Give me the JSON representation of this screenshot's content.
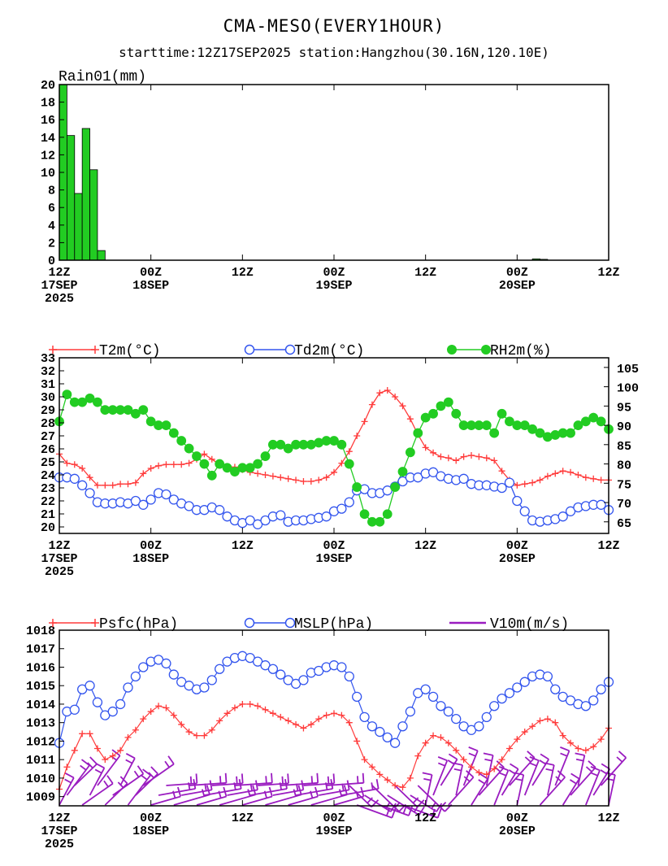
{
  "header": {
    "title": "CMA-MESO(EVERY1HOUR)",
    "subtitle": "starttime:12Z17SEP2025   station:Hangzhou(30.16N,120.10E)"
  },
  "colors": {
    "t2m": "#ff3b3b",
    "td2m": "#3355ee",
    "rh2m": "#22cc22",
    "rain_fill": "#22cc22",
    "psfc": "#ff3b3b",
    "mslp": "#3355ee",
    "wind": "#9a1cc0"
  },
  "x_axis": {
    "ticks": [
      {
        "hour": 0,
        "lines": [
          "12Z",
          "17SEP",
          "2025"
        ]
      },
      {
        "hour": 12,
        "lines": [
          "00Z",
          "18SEP"
        ]
      },
      {
        "hour": 24,
        "lines": [
          "12Z"
        ]
      },
      {
        "hour": 36,
        "lines": [
          "00Z",
          "19SEP"
        ]
      },
      {
        "hour": 48,
        "lines": [
          "12Z"
        ]
      },
      {
        "hour": 60,
        "lines": [
          "00Z",
          "20SEP"
        ]
      },
      {
        "hour": 72,
        "lines": [
          "12Z"
        ]
      }
    ]
  },
  "chart_data": [
    {
      "type": "bar",
      "title": "Rain01(mm)",
      "ylim": [
        0,
        20
      ],
      "yticks": [
        0,
        2,
        4,
        6,
        8,
        10,
        12,
        14,
        16,
        18,
        20
      ],
      "hours": [
        0.5,
        1.5,
        2.5,
        3.5,
        4.5,
        5.5,
        62.5,
        63.5
      ],
      "values": [
        20,
        14.2,
        7.6,
        15,
        10.3,
        1.1,
        0.15,
        0.1
      ]
    },
    {
      "type": "line",
      "ylim": [
        19.5,
        33
      ],
      "yticks": [
        20,
        21,
        22,
        23,
        24,
        25,
        26,
        27,
        28,
        29,
        30,
        31,
        32,
        33
      ],
      "y2lim": [
        62,
        107.5
      ],
      "y2ticks": [
        65,
        70,
        75,
        80,
        85,
        90,
        95,
        100,
        105
      ],
      "series": [
        {
          "name": "T2m(°C)",
          "axis": "left",
          "values": [
            25.6,
            24.9,
            24.8,
            24.5,
            23.8,
            23.2,
            23.2,
            23.2,
            23.3,
            23.3,
            23.4,
            24.1,
            24.5,
            24.7,
            24.8,
            24.8,
            24.8,
            24.9,
            25.2,
            25.6,
            25.2,
            24.8,
            24.6,
            24.6,
            24.4,
            24.2,
            24.1,
            24.0,
            23.9,
            23.8,
            23.7,
            23.6,
            23.5,
            23.5,
            23.6,
            23.8,
            24.2,
            24.9,
            25.8,
            27.0,
            28.1,
            29.4,
            30.3,
            30.5,
            30.0,
            29.3,
            28.3,
            27.1,
            26.1,
            25.7,
            25.4,
            25.3,
            25.1,
            25.4,
            25.5,
            25.4,
            25.3,
            25.1,
            24.3,
            23.6,
            23.2,
            23.3,
            23.4,
            23.6,
            23.9,
            24.1,
            24.3,
            24.2,
            24.0,
            23.8,
            23.7,
            23.6,
            23.6
          ]
        },
        {
          "name": "Td2m(°C)",
          "axis": "left",
          "values": [
            23.8,
            23.8,
            23.7,
            23.2,
            22.6,
            21.9,
            21.8,
            21.8,
            21.9,
            21.8,
            22.0,
            21.7,
            22.1,
            22.6,
            22.5,
            22.1,
            21.8,
            21.6,
            21.3,
            21.3,
            21.5,
            21.3,
            20.8,
            20.5,
            20.3,
            20.5,
            20.2,
            20.5,
            20.8,
            20.9,
            20.4,
            20.5,
            20.5,
            20.6,
            20.7,
            20.8,
            21.2,
            21.4,
            21.9,
            22.8,
            22.9,
            22.6,
            22.6,
            22.8,
            23.1,
            23.5,
            23.8,
            23.8,
            24.1,
            24.2,
            23.9,
            23.7,
            23.6,
            23.7,
            23.3,
            23.2,
            23.2,
            23.1,
            23.0,
            23.4,
            22.0,
            21.2,
            20.5,
            20.4,
            20.5,
            20.6,
            20.8,
            21.2,
            21.5,
            21.6,
            21.7,
            21.7,
            21.3
          ]
        },
        {
          "name": "RH2m(%)",
          "axis": "right",
          "values": [
            91,
            98,
            96,
            96,
            97,
            96,
            94,
            94,
            94,
            94,
            93,
            94,
            91,
            90,
            90,
            88,
            86,
            84,
            82,
            80,
            77,
            80,
            79,
            78,
            79,
            79,
            80,
            82,
            85,
            85,
            84,
            85,
            85,
            85,
            85.5,
            86,
            86,
            85,
            80,
            74,
            67,
            65,
            65,
            67,
            74,
            78,
            83,
            88,
            92,
            93,
            95,
            96,
            93,
            90,
            90,
            90,
            90,
            88,
            93,
            91,
            90,
            90,
            89,
            88,
            87,
            87.5,
            88,
            88,
            90,
            91,
            92,
            91,
            89
          ]
        }
      ]
    },
    {
      "type": "line",
      "ylim": [
        1008.5,
        1018
      ],
      "yticks": [
        1009,
        1010,
        1011,
        1012,
        1013,
        1014,
        1015,
        1016,
        1017,
        1018
      ],
      "series": [
        {
          "name": "Psfc(hPa)",
          "axis": "left",
          "values": [
            1009.4,
            1010.6,
            1011.5,
            1012.4,
            1012.4,
            1011.6,
            1011.0,
            1011.2,
            1011.5,
            1012.2,
            1012.6,
            1013.2,
            1013.6,
            1013.9,
            1013.8,
            1013.4,
            1012.9,
            1012.5,
            1012.3,
            1012.3,
            1012.6,
            1013.1,
            1013.5,
            1013.8,
            1014.0,
            1014.0,
            1013.9,
            1013.7,
            1013.5,
            1013.3,
            1013.1,
            1012.9,
            1012.7,
            1012.9,
            1013.2,
            1013.4,
            1013.5,
            1013.4,
            1013.0,
            1012.0,
            1011.0,
            1010.6,
            1010.2,
            1009.9,
            1009.6,
            1009.5,
            1010.0,
            1011.2,
            1011.9,
            1012.3,
            1012.2,
            1011.9,
            1011.5,
            1011.0,
            1010.6,
            1010.3,
            1010.2,
            1010.5,
            1011.0,
            1011.6,
            1012.1,
            1012.5,
            1012.8,
            1013.1,
            1013.2,
            1013.0,
            1012.3,
            1011.9,
            1011.6,
            1011.5,
            1011.7,
            1012.1,
            1012.7
          ]
        },
        {
          "name": "MSLP(hPa)",
          "axis": "left",
          "values": [
            1011.9,
            1013.6,
            1013.7,
            1014.8,
            1015.0,
            1014.1,
            1013.4,
            1013.6,
            1014.0,
            1014.9,
            1015.5,
            1016.0,
            1016.3,
            1016.4,
            1016.2,
            1015.6,
            1015.2,
            1015.0,
            1014.8,
            1014.9,
            1015.3,
            1015.9,
            1016.3,
            1016.5,
            1016.6,
            1016.5,
            1016.3,
            1016.1,
            1015.9,
            1015.6,
            1015.3,
            1015.1,
            1015.3,
            1015.7,
            1015.8,
            1016.0,
            1016.1,
            1016.0,
            1015.5,
            1014.4,
            1013.3,
            1012.8,
            1012.5,
            1012.2,
            1011.9,
            1012.8,
            1013.6,
            1014.6,
            1014.8,
            1014.4,
            1013.9,
            1013.6,
            1013.2,
            1012.8,
            1012.6,
            1012.8,
            1013.3,
            1013.9,
            1014.3,
            1014.6,
            1014.9,
            1015.2,
            1015.5,
            1015.6,
            1015.5,
            1014.8,
            1014.4,
            1014.2,
            1014.0,
            1013.9,
            1014.2,
            1014.8,
            1015.2
          ]
        },
        {
          "name": "V10m(m/s)",
          "axis": "none"
        }
      ]
    }
  ]
}
